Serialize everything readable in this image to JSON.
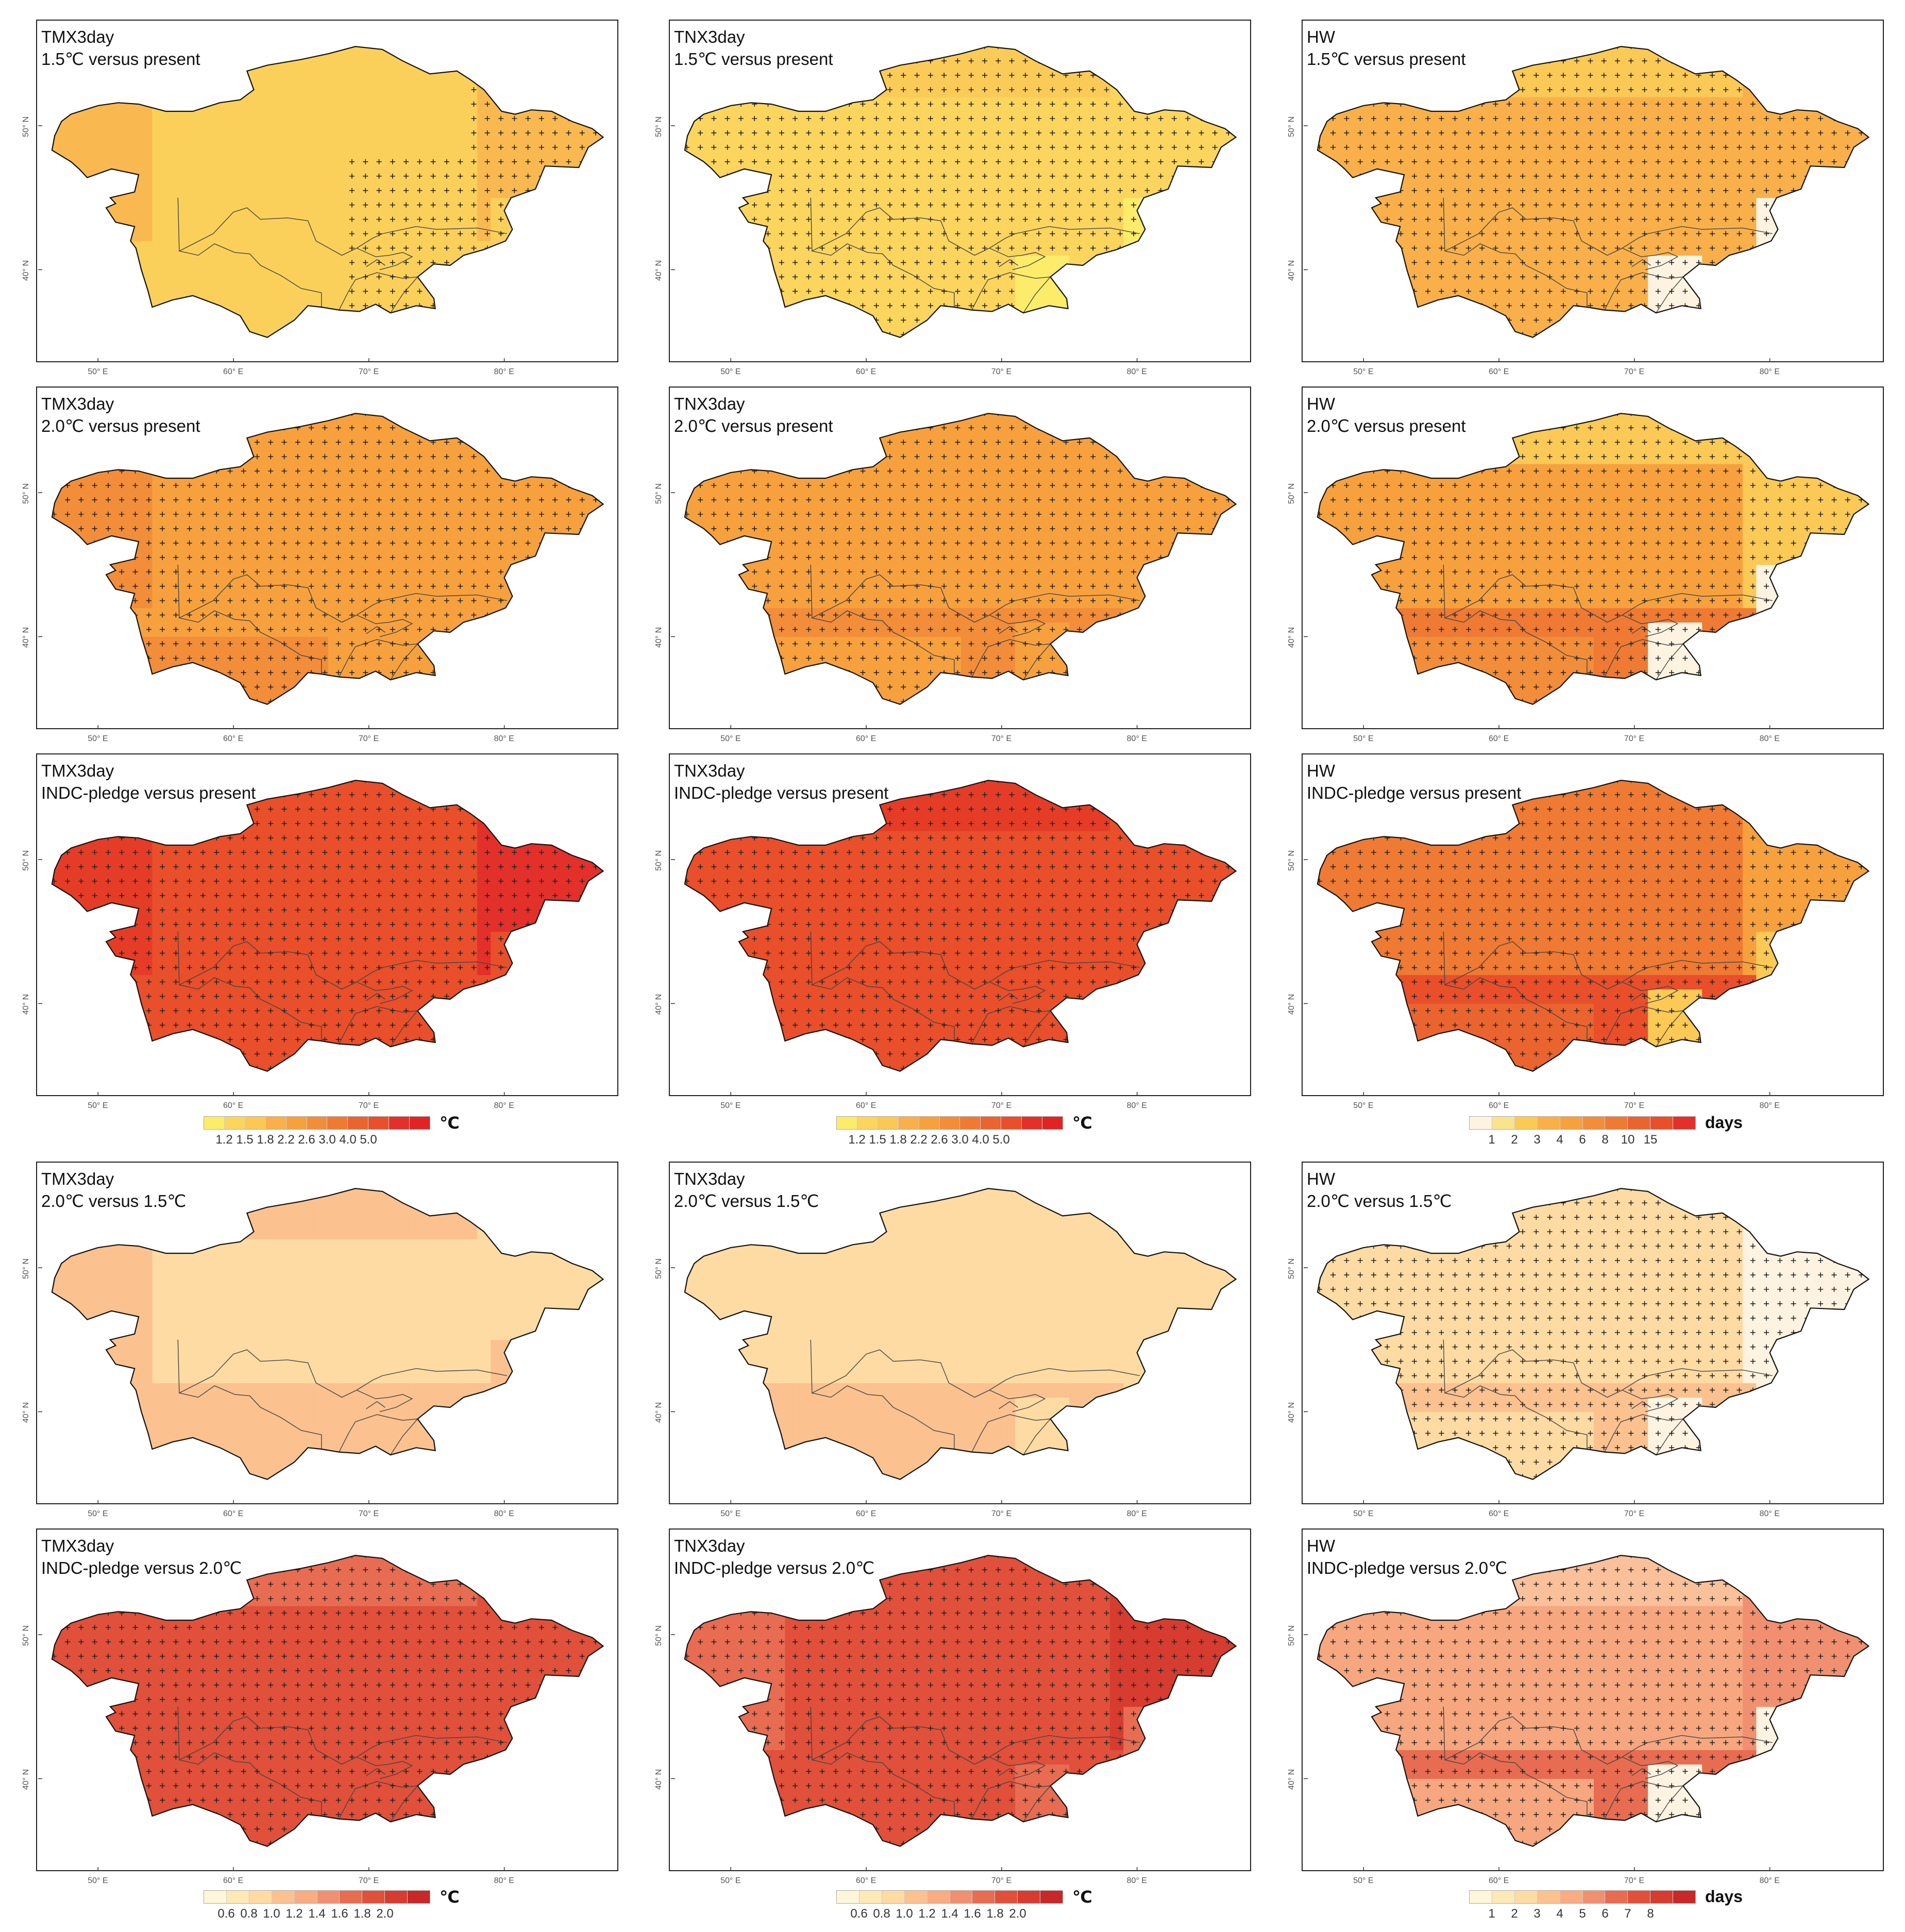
{
  "panels": [
    {
      "id": "p11",
      "var": "TMX3day",
      "comp": "1.5℃ versus present",
      "hatch": "east",
      "colors": {
        "base": "#fbd05a",
        "sw": "#fbd05a",
        "w": "#f9b950",
        "south": "#fbd05a",
        "se": "#fbd05a",
        "east": "#f9b950",
        "north": "#fbd05a",
        "tjk": "#fbd05a"
      }
    },
    {
      "id": "p12",
      "var": "TNX3day",
      "comp": "1.5℃ versus present",
      "hatch": "most",
      "colors": {
        "base": "#fbd55e",
        "sw": "#fbd55e",
        "w": "#fbd55e",
        "south": "#fbd55e",
        "se": "#fcec6a",
        "east": "#fbd55e",
        "north": "#fbcb58",
        "tjk": "#fcec6a"
      }
    },
    {
      "id": "p13",
      "var": "HW",
      "comp": "1.5℃ versus present",
      "hatch": "all",
      "colors": {
        "base": "#f9b04a",
        "sw": "#f9b04a",
        "w": "#f9b04a",
        "south": "#f9b04a",
        "se": "#fdf3e0",
        "east": "#f9b04a",
        "north": "#fbc955",
        "tjk": "#fdf3e0"
      }
    },
    {
      "id": "p21",
      "var": "TMX3day",
      "comp": "2.0℃ versus present",
      "hatch": "all",
      "colors": {
        "base": "#f7a13e",
        "sw": "#f28d3a",
        "w": "#f28d3a",
        "south": "#f7a13e",
        "se": "#f7a13e",
        "east": "#f7a13e",
        "north": "#f7a13e",
        "tjk": "#f7a13e"
      }
    },
    {
      "id": "p22",
      "var": "TNX3day",
      "comp": "2.0℃ versus present",
      "hatch": "all",
      "colors": {
        "base": "#f7a13e",
        "sw": "#f7a13e",
        "w": "#f7a13e",
        "south": "#f28d3a",
        "se": "#f7a13e",
        "east": "#f7a13e",
        "north": "#f7a13e",
        "tjk": "#f7a13e"
      }
    },
    {
      "id": "p23",
      "var": "HW",
      "comp": "2.0℃ versus present",
      "hatch": "all",
      "colors": {
        "base": "#f7a13e",
        "sw": "#f28d3a",
        "w": "#f7a13e",
        "south": "#ee7a34",
        "se": "#fdf3e0",
        "east": "#fbc955",
        "north": "#fbc955",
        "tjk": "#fdf3e0"
      }
    },
    {
      "id": "p31",
      "var": "TMX3day",
      "comp": "INDC-pledge versus present",
      "hatch": "all",
      "colors": {
        "base": "#e84f2a",
        "sw": "#e84f2a",
        "w": "#e53c27",
        "south": "#e84f2a",
        "se": "#e84f2a",
        "east": "#e3302a",
        "north": "#e84f2a",
        "tjk": "#e84f2a"
      }
    },
    {
      "id": "p32",
      "var": "TNX3day",
      "comp": "INDC-pledge versus present",
      "hatch": "all",
      "colors": {
        "base": "#e84f2a",
        "sw": "#e84f2a",
        "w": "#e84f2a",
        "south": "#e84f2a",
        "se": "#e84f2a",
        "east": "#e84f2a",
        "north": "#e53c27",
        "tjk": "#e84f2a"
      }
    },
    {
      "id": "p33",
      "var": "HW",
      "comp": "INDC-pledge versus present",
      "hatch": "all",
      "colors": {
        "base": "#ee7a34",
        "sw": "#ea6430",
        "w": "#ee7a34",
        "south": "#e84f2a",
        "se": "#fbc955",
        "east": "#f7a13e",
        "north": "#ee7a34",
        "tjk": "#fbc955"
      }
    },
    {
      "id": "p41",
      "var": "TMX3day",
      "comp": "2.0℃ versus 1.5℃",
      "hatch": "none",
      "colors": {
        "base": "#fddba3",
        "sw": "#fbc18f",
        "w": "#fbc18f",
        "south": "#fbc18f",
        "se": "#fbc18f",
        "east": "#fddba3",
        "north": "#fbc18f",
        "tjk": "#fbc18f"
      }
    },
    {
      "id": "p42",
      "var": "TNX3day",
      "comp": "2.0℃ versus 1.5℃",
      "hatch": "none",
      "colors": {
        "base": "#fddba3",
        "sw": "#fbc18f",
        "w": "#fddba3",
        "south": "#fbc18f",
        "se": "#fddba3",
        "east": "#fddba3",
        "north": "#fddba3",
        "tjk": "#fddba3"
      }
    },
    {
      "id": "p43",
      "var": "HW",
      "comp": "2.0℃ versus 1.5℃",
      "hatch": "all",
      "colors": {
        "base": "#fddba3",
        "sw": "#fddba3",
        "w": "#fddba3",
        "south": "#fbc18f",
        "se": "#fdf3e0",
        "east": "#fdf3e0",
        "north": "#fddba3",
        "tjk": "#fdf3e0"
      }
    },
    {
      "id": "p51",
      "var": "TMX3day",
      "comp": "INDC-pledge versus 2.0℃",
      "hatch": "all",
      "colors": {
        "base": "#e0503a",
        "sw": "#e0503a",
        "w": "#e0503a",
        "south": "#e0503a",
        "se": "#e0503a",
        "east": "#e0503a",
        "north": "#e86c52",
        "tjk": "#e0503a"
      }
    },
    {
      "id": "p52",
      "var": "TNX3day",
      "comp": "INDC-pledge versus 2.0℃",
      "hatch": "all",
      "colors": {
        "base": "#e0503a",
        "sw": "#e0503a",
        "w": "#e86c52",
        "south": "#e0503a",
        "se": "#e86c52",
        "east": "#d63c2f",
        "north": "#e0503a",
        "tjk": "#e86c52"
      }
    },
    {
      "id": "p53",
      "var": "HW",
      "comp": "INDC-pledge versus 2.0℃",
      "hatch": "all",
      "colors": {
        "base": "#f6a77f",
        "sw": "#f6a77f",
        "w": "#f6a77f",
        "south": "#e86c52",
        "se": "#fdf3e0",
        "east": "#f09070",
        "north": "#f9c09a",
        "tjk": "#fdf3e0"
      }
    }
  ],
  "axes": {
    "lon_ticks": [
      "50° E",
      "60° E",
      "70° E",
      "80° E"
    ],
    "lat_ticks": [
      "50° N",
      "40° N"
    ]
  },
  "legends": [
    {
      "id": "leg1",
      "unit": "℃",
      "colors": [
        "#fcec6a",
        "#fbd55e",
        "#fbc855",
        "#f9b04a",
        "#f7a13e",
        "#f28d3a",
        "#ee7a34",
        "#ea6430",
        "#e84f2a",
        "#e3302a",
        "#e02424"
      ],
      "labels": [
        "1.2",
        "1.5",
        "1.8",
        "2.2",
        "2.6",
        "3.0",
        "4.0",
        "5.0"
      ]
    },
    {
      "id": "leg2",
      "unit": "℃",
      "colors": [
        "#fcec6a",
        "#fbd55e",
        "#fbc855",
        "#f9b04a",
        "#f7a13e",
        "#f28d3a",
        "#ee7a34",
        "#ea6430",
        "#e84f2a",
        "#e3302a",
        "#e02424"
      ],
      "labels": [
        "1.2",
        "1.5",
        "1.8",
        "2.2",
        "2.6",
        "3.0",
        "4.0",
        "5.0"
      ]
    },
    {
      "id": "leg3",
      "unit": "days",
      "colors": [
        "#fdf3e0",
        "#fbe38e",
        "#fbc955",
        "#f9b04a",
        "#f7a13e",
        "#f28d3a",
        "#ee7a34",
        "#ea6430",
        "#e84f2a",
        "#e3302a"
      ],
      "labels": [
        "1",
        "2",
        "3",
        "4",
        "6",
        "8",
        "10",
        "15"
      ]
    },
    {
      "id": "leg4",
      "unit": "℃",
      "colors": [
        "#fdf6d8",
        "#fde9b5",
        "#fddba3",
        "#fbc18f",
        "#f9ac82",
        "#f09070",
        "#e86c52",
        "#e0503a",
        "#d63c2f",
        "#c82828"
      ],
      "labels": [
        "0.6",
        "0.8",
        "1.0",
        "1.2",
        "1.4",
        "1.6",
        "1.8",
        "2.0"
      ]
    },
    {
      "id": "leg5",
      "unit": "℃",
      "colors": [
        "#fdf6d8",
        "#fde9b5",
        "#fddba3",
        "#fbc18f",
        "#f9ac82",
        "#f09070",
        "#e86c52",
        "#e0503a",
        "#d63c2f",
        "#c82828"
      ],
      "labels": [
        "0.6",
        "0.8",
        "1.0",
        "1.2",
        "1.4",
        "1.6",
        "1.8",
        "2.0"
      ]
    },
    {
      "id": "leg6",
      "unit": "days",
      "colors": [
        "#fdf6d8",
        "#fde9b5",
        "#fddba3",
        "#fbc18f",
        "#f9ac82",
        "#f09070",
        "#e86c52",
        "#e0503a",
        "#d63c2f",
        "#c82828"
      ],
      "labels": [
        "1",
        "2",
        "3",
        "4",
        "5",
        "6",
        "7",
        "8"
      ]
    }
  ]
}
